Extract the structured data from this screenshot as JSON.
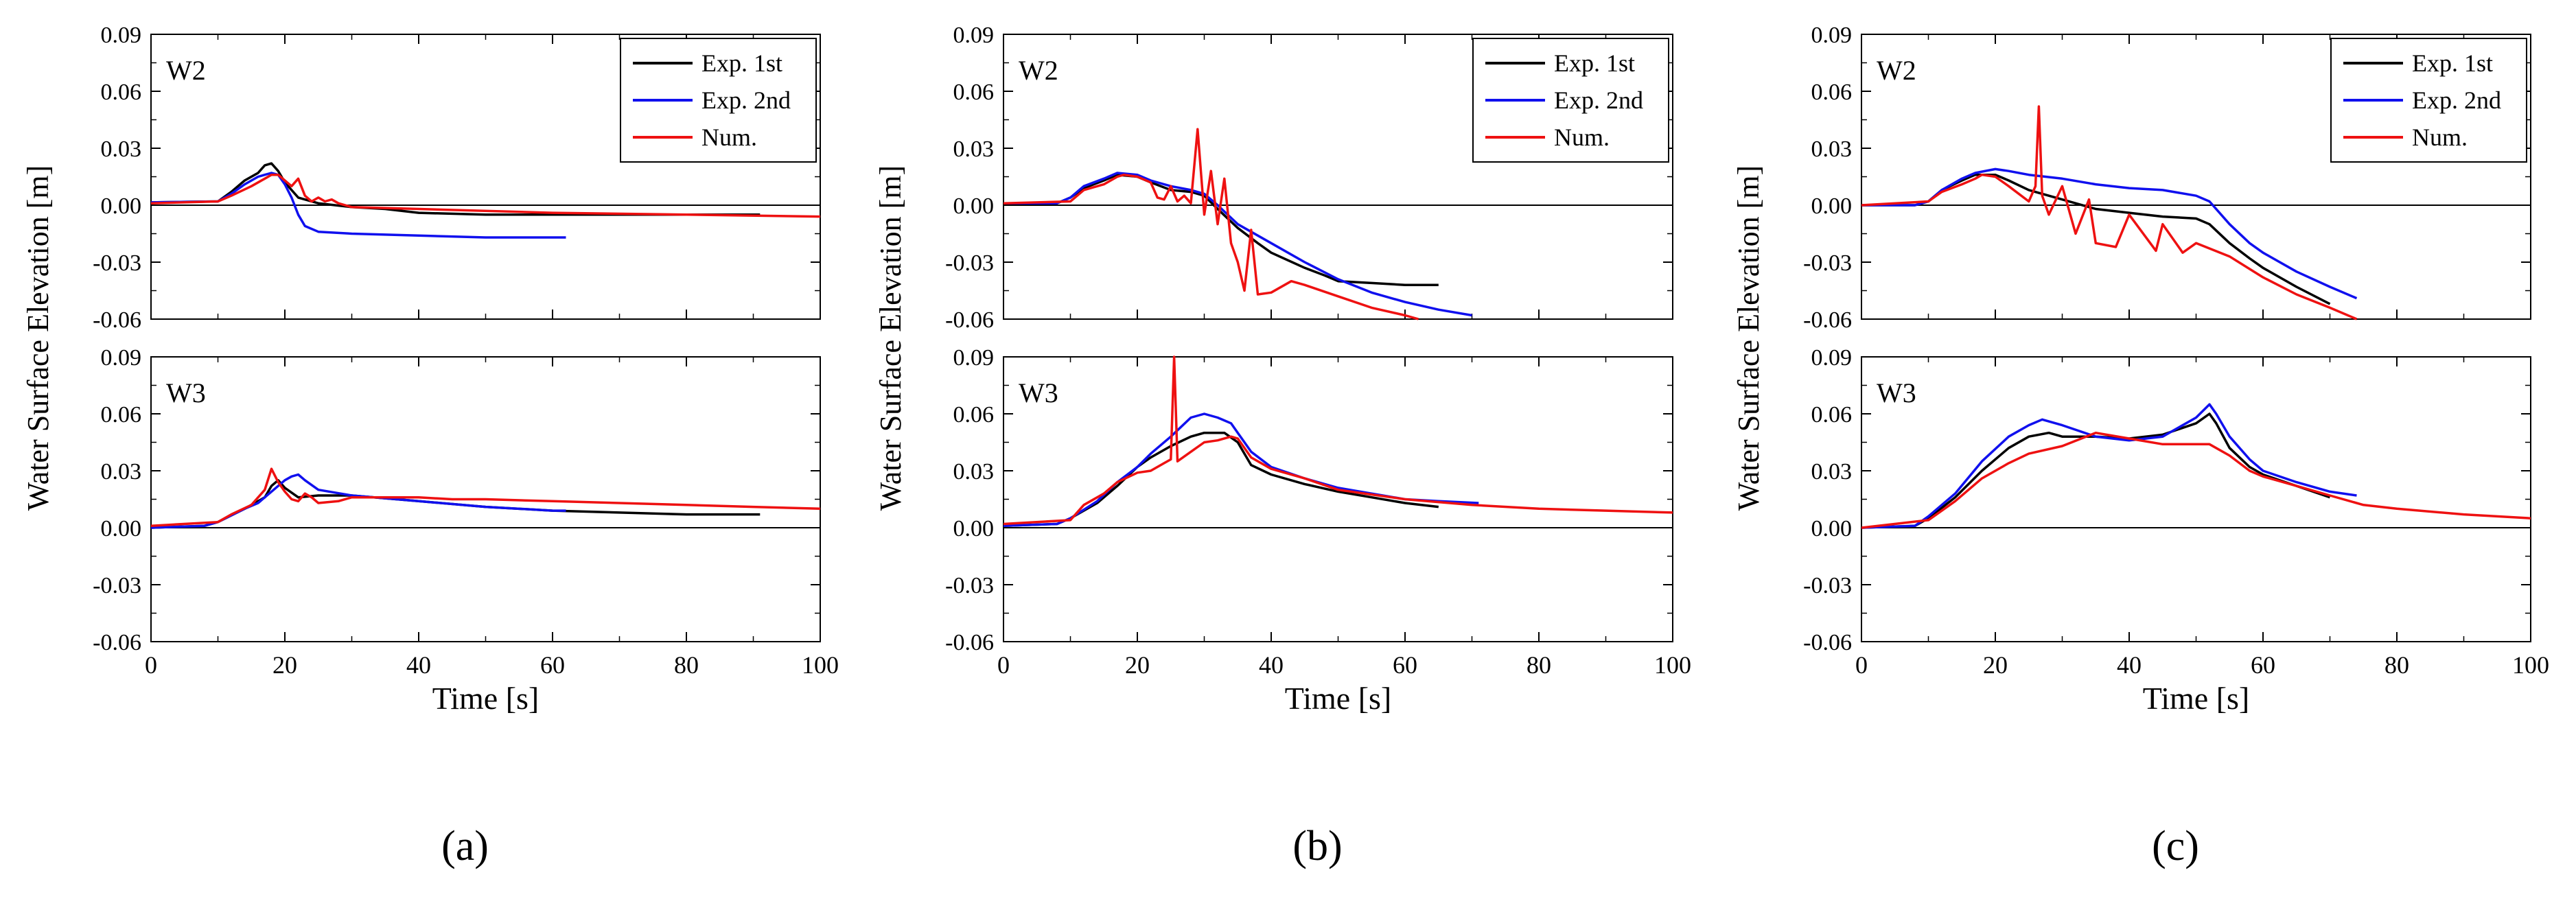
{
  "figure": {
    "panel_labels": [
      "(a)",
      "(b)",
      "(c)"
    ]
  },
  "colors": {
    "exp1": "#000000",
    "exp2": "#1010ee",
    "num": "#ee1111",
    "axis": "#000000"
  },
  "chart_data": [
    {
      "id": "a-W2",
      "type": "line",
      "label": "W2",
      "ylabel": "Water Surface Elevation [m]",
      "xlabel": "",
      "xlim": [
        0,
        100
      ],
      "ylim": [
        -0.06,
        0.09
      ],
      "xticks": [
        "0",
        "20",
        "40",
        "60",
        "80",
        "100"
      ],
      "yticks": [
        "-0.06",
        "-0.03",
        "0.00",
        "0.03",
        "0.06",
        "0.09"
      ],
      "zero_line": true,
      "legend": "top-right",
      "series": [
        {
          "name": "Exp. 1st",
          "color": "#000000",
          "x": [
            0,
            10,
            12,
            14,
            16,
            17,
            18,
            19,
            20,
            22,
            25,
            30,
            35,
            40,
            50,
            60,
            70,
            80,
            91
          ],
          "y": [
            0.0015,
            0.002,
            0.007,
            0.013,
            0.017,
            0.021,
            0.022,
            0.018,
            0.012,
            0.004,
            0.001,
            -0.001,
            -0.002,
            -0.004,
            -0.005,
            -0.005,
            -0.005,
            -0.005,
            -0.005
          ]
        },
        {
          "name": "Exp. 2nd",
          "color": "#1010ee",
          "x": [
            0,
            10,
            12,
            14,
            16,
            17,
            18,
            19,
            20,
            21,
            22,
            23,
            25,
            30,
            40,
            50,
            60,
            62
          ],
          "y": [
            0.0015,
            0.002,
            0.006,
            0.011,
            0.015,
            0.016,
            0.017,
            0.016,
            0.011,
            0.004,
            -0.005,
            -0.011,
            -0.014,
            -0.015,
            -0.016,
            -0.017,
            -0.017,
            -0.017
          ]
        },
        {
          "name": "Num.",
          "color": "#ee1111",
          "x": [
            0,
            10,
            12,
            15,
            17,
            18,
            19,
            20,
            21,
            22,
            23,
            24,
            25,
            26,
            27,
            28,
            30,
            40,
            60,
            80,
            100
          ],
          "y": [
            0.001,
            0.002,
            0.005,
            0.01,
            0.014,
            0.016,
            0.016,
            0.013,
            0.01,
            0.014,
            0.005,
            0.002,
            0.004,
            0.002,
            0.003,
            0.001,
            -0.001,
            -0.002,
            -0.004,
            -0.005,
            -0.006
          ]
        }
      ]
    },
    {
      "id": "a-W3",
      "type": "line",
      "label": "W3",
      "ylabel": "Water Surface Elevation [m]",
      "xlabel": "Time [s]",
      "xlim": [
        0,
        100
      ],
      "ylim": [
        -0.06,
        0.09
      ],
      "xticks": [
        "0",
        "20",
        "40",
        "60",
        "80",
        "100"
      ],
      "yticks": [
        "-0.06",
        "-0.03",
        "0.00",
        "0.03",
        "0.06",
        "0.09"
      ],
      "zero_line": true,
      "series": [
        {
          "name": "Exp. 1st",
          "color": "#000000",
          "x": [
            0,
            8,
            10,
            14,
            17,
            18,
            19,
            20,
            22,
            25,
            30,
            40,
            50,
            60,
            70,
            80,
            91
          ],
          "y": [
            0,
            0.001,
            0.003,
            0.01,
            0.016,
            0.022,
            0.025,
            0.021,
            0.016,
            0.017,
            0.017,
            0.014,
            0.011,
            0.009,
            0.008,
            0.007,
            0.007
          ]
        },
        {
          "name": "Exp. 2nd",
          "color": "#1010ee",
          "x": [
            0,
            8,
            10,
            14,
            16,
            18,
            20,
            21,
            22,
            23,
            25,
            30,
            40,
            50,
            60,
            62
          ],
          "y": [
            0,
            0.001,
            0.003,
            0.01,
            0.013,
            0.019,
            0.025,
            0.027,
            0.028,
            0.025,
            0.02,
            0.017,
            0.014,
            0.011,
            0.009,
            0.009
          ]
        },
        {
          "name": "Num.",
          "color": "#ee1111",
          "x": [
            0,
            10,
            12,
            15,
            17,
            18,
            19,
            20,
            21,
            22,
            23,
            24,
            25,
            28,
            30,
            35,
            40,
            45,
            50,
            60,
            70,
            80,
            90,
            100
          ],
          "y": [
            0.001,
            0.003,
            0.007,
            0.012,
            0.02,
            0.031,
            0.024,
            0.019,
            0.015,
            0.014,
            0.018,
            0.016,
            0.013,
            0.014,
            0.016,
            0.016,
            0.016,
            0.015,
            0.015,
            0.014,
            0.013,
            0.012,
            0.011,
            0.01
          ]
        }
      ]
    },
    {
      "id": "b-W2",
      "type": "line",
      "label": "W2",
      "ylabel": "Water Surface Elevation [m]",
      "xlabel": "",
      "xlim": [
        0,
        100
      ],
      "ylim": [
        -0.06,
        0.09
      ],
      "xticks": [
        "0",
        "20",
        "40",
        "60",
        "80",
        "100"
      ],
      "yticks": [
        "-0.06",
        "-0.03",
        "0.00",
        "0.03",
        "0.06",
        "0.09"
      ],
      "zero_line": true,
      "legend": "top-right",
      "series": [
        {
          "name": "Exp. 1st",
          "color": "#000000",
          "x": [
            0,
            8,
            10,
            12,
            15,
            17,
            20,
            22,
            25,
            28,
            30,
            32,
            35,
            38,
            40,
            45,
            48,
            50,
            55,
            60,
            65
          ],
          "y": [
            0.001,
            0.001,
            0.004,
            0.009,
            0.013,
            0.016,
            0.015,
            0.012,
            0.008,
            0.007,
            0.005,
            -0.002,
            -0.012,
            -0.02,
            -0.025,
            -0.033,
            -0.037,
            -0.04,
            -0.041,
            -0.042,
            -0.042
          ]
        },
        {
          "name": "Exp. 2nd",
          "color": "#1010ee",
          "x": [
            0,
            8,
            10,
            12,
            15,
            17,
            20,
            22,
            25,
            28,
            30,
            32,
            35,
            40,
            45,
            50,
            55,
            60,
            65,
            70
          ],
          "y": [
            0.001,
            0.001,
            0.004,
            0.01,
            0.014,
            0.017,
            0.016,
            0.013,
            0.01,
            0.008,
            0.006,
            0,
            -0.01,
            -0.02,
            -0.03,
            -0.039,
            -0.046,
            -0.051,
            -0.055,
            -0.058
          ]
        },
        {
          "name": "Num.",
          "color": "#ee1111",
          "x": [
            0,
            10,
            12,
            15,
            17,
            18,
            20,
            22,
            23,
            24,
            25,
            26,
            27,
            28,
            29,
            30,
            31,
            32,
            33,
            34,
            35,
            36,
            37,
            38,
            40,
            43,
            45,
            50,
            55,
            60,
            62
          ],
          "y": [
            0.001,
            0.002,
            0.008,
            0.011,
            0.015,
            0.016,
            0.015,
            0.012,
            0.004,
            0.003,
            0.01,
            0.002,
            0.005,
            0.001,
            0.04,
            -0.005,
            0.018,
            -0.01,
            0.014,
            -0.02,
            -0.03,
            -0.045,
            -0.013,
            -0.047,
            -0.046,
            -0.04,
            -0.042,
            -0.048,
            -0.054,
            -0.058,
            -0.06
          ]
        }
      ]
    },
    {
      "id": "b-W3",
      "type": "line",
      "label": "W3",
      "ylabel": "Water Surface Elevation [m]",
      "xlabel": "Time [s]",
      "xlim": [
        0,
        100
      ],
      "ylim": [
        -0.06,
        0.09
      ],
      "xticks": [
        "0",
        "20",
        "40",
        "60",
        "80",
        "100"
      ],
      "yticks": [
        "-0.06",
        "-0.03",
        "0.00",
        "0.03",
        "0.06",
        "0.09"
      ],
      "zero_line": true,
      "series": [
        {
          "name": "Exp. 1st",
          "color": "#000000",
          "x": [
            0,
            8,
            10,
            14,
            17,
            20,
            22,
            25,
            28,
            30,
            33,
            35,
            37,
            40,
            45,
            50,
            55,
            60,
            65
          ],
          "y": [
            0.001,
            0.002,
            0.005,
            0.013,
            0.022,
            0.032,
            0.037,
            0.043,
            0.048,
            0.05,
            0.05,
            0.045,
            0.033,
            0.028,
            0.023,
            0.019,
            0.016,
            0.013,
            0.011
          ]
        },
        {
          "name": "Exp. 2nd",
          "color": "#1010ee",
          "x": [
            0,
            8,
            10,
            14,
            17,
            20,
            22,
            25,
            28,
            30,
            32,
            34,
            35,
            37,
            40,
            45,
            50,
            55,
            60,
            65,
            71
          ],
          "y": [
            0.001,
            0.002,
            0.005,
            0.014,
            0.024,
            0.032,
            0.039,
            0.048,
            0.058,
            0.06,
            0.058,
            0.055,
            0.05,
            0.04,
            0.032,
            0.026,
            0.021,
            0.018,
            0.015,
            0.014,
            0.013
          ]
        },
        {
          "name": "Num.",
          "color": "#ee1111",
          "x": [
            0,
            10,
            12,
            15,
            17,
            20,
            22,
            24,
            25,
            25.5,
            26,
            28,
            30,
            32,
            34,
            35,
            37,
            40,
            45,
            50,
            60,
            70,
            80,
            90,
            100
          ],
          "y": [
            0.002,
            0.004,
            0.012,
            0.018,
            0.024,
            0.029,
            0.03,
            0.034,
            0.036,
            0.09,
            0.035,
            0.04,
            0.045,
            0.046,
            0.048,
            0.047,
            0.037,
            0.031,
            0.026,
            0.02,
            0.015,
            0.012,
            0.01,
            0.009,
            0.008
          ]
        }
      ]
    },
    {
      "id": "c-W2",
      "type": "line",
      "label": "W2",
      "ylabel": "Water Surface Elevation [m]",
      "xlabel": "",
      "xlim": [
        0,
        100
      ],
      "ylim": [
        -0.06,
        0.09
      ],
      "xticks": [
        "0",
        "20",
        "40",
        "60",
        "80",
        "100"
      ],
      "yticks": [
        "-0.06",
        "-0.03",
        "0.00",
        "0.03",
        "0.06",
        "0.09"
      ],
      "zero_line": true,
      "legend": "top-right",
      "series": [
        {
          "name": "Exp. 1st",
          "color": "#000000",
          "x": [
            0,
            8,
            10,
            12,
            15,
            17,
            20,
            22,
            25,
            30,
            35,
            40,
            45,
            50,
            52,
            55,
            58,
            60,
            65,
            70
          ],
          "y": [
            0,
            0,
            0.002,
            0.008,
            0.013,
            0.016,
            0.016,
            0.013,
            0.008,
            0.003,
            -0.002,
            -0.004,
            -0.006,
            -0.007,
            -0.01,
            -0.02,
            -0.028,
            -0.033,
            -0.043,
            -0.052
          ]
        },
        {
          "name": "Exp. 2nd",
          "color": "#1010ee",
          "x": [
            0,
            8,
            10,
            12,
            15,
            17,
            20,
            22,
            25,
            30,
            35,
            40,
            45,
            50,
            52,
            55,
            58,
            60,
            65,
            70,
            74
          ],
          "y": [
            0,
            0,
            0.002,
            0.008,
            0.014,
            0.017,
            0.019,
            0.018,
            0.016,
            0.014,
            0.011,
            0.009,
            0.008,
            0.005,
            0.002,
            -0.01,
            -0.02,
            -0.025,
            -0.035,
            -0.043,
            -0.049
          ]
        },
        {
          "name": "Num.",
          "color": "#ee1111",
          "x": [
            0,
            10,
            12,
            15,
            17,
            18,
            20,
            22,
            25,
            26,
            26.5,
            27,
            28,
            30,
            32,
            34,
            35,
            38,
            40,
            44,
            45,
            48,
            50,
            55,
            60,
            65,
            70,
            74
          ],
          "y": [
            0,
            0.002,
            0.007,
            0.011,
            0.014,
            0.016,
            0.015,
            0.01,
            0.002,
            0.01,
            0.052,
            0.005,
            -0.005,
            0.01,
            -0.015,
            0.003,
            -0.02,
            -0.022,
            -0.005,
            -0.024,
            -0.01,
            -0.025,
            -0.02,
            -0.027,
            -0.038,
            -0.047,
            -0.054,
            -0.06
          ]
        }
      ]
    },
    {
      "id": "c-W3",
      "type": "line",
      "label": "W3",
      "ylabel": "Water Surface Elevation [m]",
      "xlabel": "Time [s]",
      "xlim": [
        0,
        100
      ],
      "ylim": [
        -0.06,
        0.09
      ],
      "xticks": [
        "0",
        "20",
        "40",
        "60",
        "80",
        "100"
      ],
      "yticks": [
        "-0.06",
        "-0.03",
        "0.00",
        "0.03",
        "0.06",
        "0.09"
      ],
      "zero_line": true,
      "series": [
        {
          "name": "Exp. 1st",
          "color": "#000000",
          "x": [
            0,
            8,
            10,
            14,
            18,
            22,
            25,
            28,
            30,
            35,
            40,
            45,
            50,
            52,
            53,
            55,
            58,
            60,
            65,
            70
          ],
          "y": [
            0,
            0.001,
            0.005,
            0.016,
            0.03,
            0.042,
            0.048,
            0.05,
            0.048,
            0.048,
            0.047,
            0.049,
            0.055,
            0.06,
            0.055,
            0.042,
            0.032,
            0.028,
            0.022,
            0.016
          ]
        },
        {
          "name": "Exp. 2nd",
          "color": "#1010ee",
          "x": [
            0,
            8,
            10,
            14,
            18,
            22,
            25,
            27,
            30,
            35,
            40,
            45,
            50,
            52,
            53,
            55,
            58,
            60,
            65,
            70,
            74
          ],
          "y": [
            0,
            0.001,
            0.006,
            0.018,
            0.035,
            0.048,
            0.054,
            0.057,
            0.054,
            0.048,
            0.046,
            0.048,
            0.058,
            0.065,
            0.06,
            0.048,
            0.036,
            0.03,
            0.024,
            0.019,
            0.017
          ]
        },
        {
          "name": "Num.",
          "color": "#ee1111",
          "x": [
            0,
            10,
            14,
            18,
            22,
            25,
            30,
            35,
            40,
            45,
            50,
            52,
            55,
            58,
            60,
            65,
            70,
            75,
            80,
            90,
            100
          ],
          "y": [
            0,
            0.004,
            0.014,
            0.026,
            0.034,
            0.039,
            0.043,
            0.05,
            0.047,
            0.044,
            0.044,
            0.044,
            0.038,
            0.03,
            0.027,
            0.022,
            0.017,
            0.012,
            0.01,
            0.007,
            0.005
          ]
        }
      ]
    }
  ]
}
